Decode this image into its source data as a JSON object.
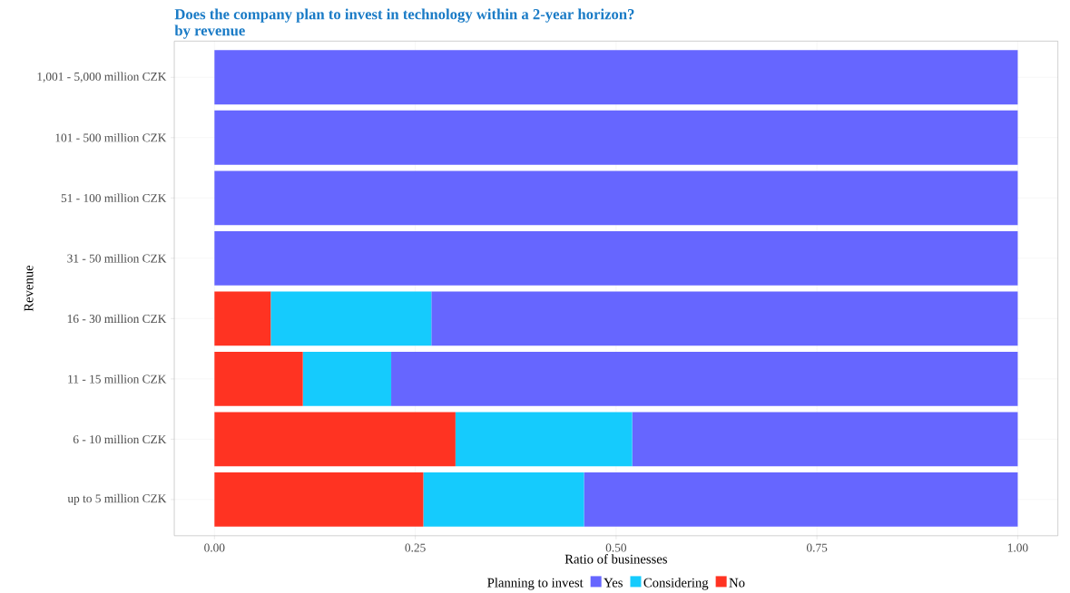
{
  "chart_data": {
    "type": "bar",
    "orientation": "horizontal",
    "stacked": true,
    "title": "Does the company plan to invest in technology within a 2-year horizon?",
    "subtitle": "by revenue",
    "xlabel": "Ratio of businesses",
    "ylabel": "Revenue",
    "legend_title": "Planning to invest",
    "categories": [
      "1,001 - 5,000 million CZK",
      "101 - 500 million CZK",
      "51 - 100 million CZK",
      "31 - 50 million CZK",
      "16 - 30 million CZK",
      "11 - 15 million CZK",
      "6 - 10 million CZK",
      "up to 5 million CZK"
    ],
    "series": [
      {
        "name": "No",
        "color": "#ff3322",
        "values": [
          0,
          0,
          0,
          0,
          0.07,
          0.11,
          0.3,
          0.26
        ]
      },
      {
        "name": "Considering",
        "color": "#15cbfd",
        "values": [
          0,
          0,
          0,
          0,
          0.2,
          0.11,
          0.22,
          0.2
        ]
      },
      {
        "name": "Yes",
        "color": "#6666ff",
        "values": [
          1,
          1,
          1,
          1,
          0.73,
          0.78,
          0.48,
          0.54
        ]
      }
    ],
    "xlim": [
      -0.05,
      1.05
    ],
    "xticks": [
      {
        "value": 0,
        "label": "0.00"
      },
      {
        "value": 0.25,
        "label": "0.25"
      },
      {
        "value": 0.5,
        "label": "0.50"
      },
      {
        "value": 0.75,
        "label": "0.75"
      },
      {
        "value": 1,
        "label": "1.00"
      }
    ],
    "grid": true,
    "legend": "bottom"
  }
}
